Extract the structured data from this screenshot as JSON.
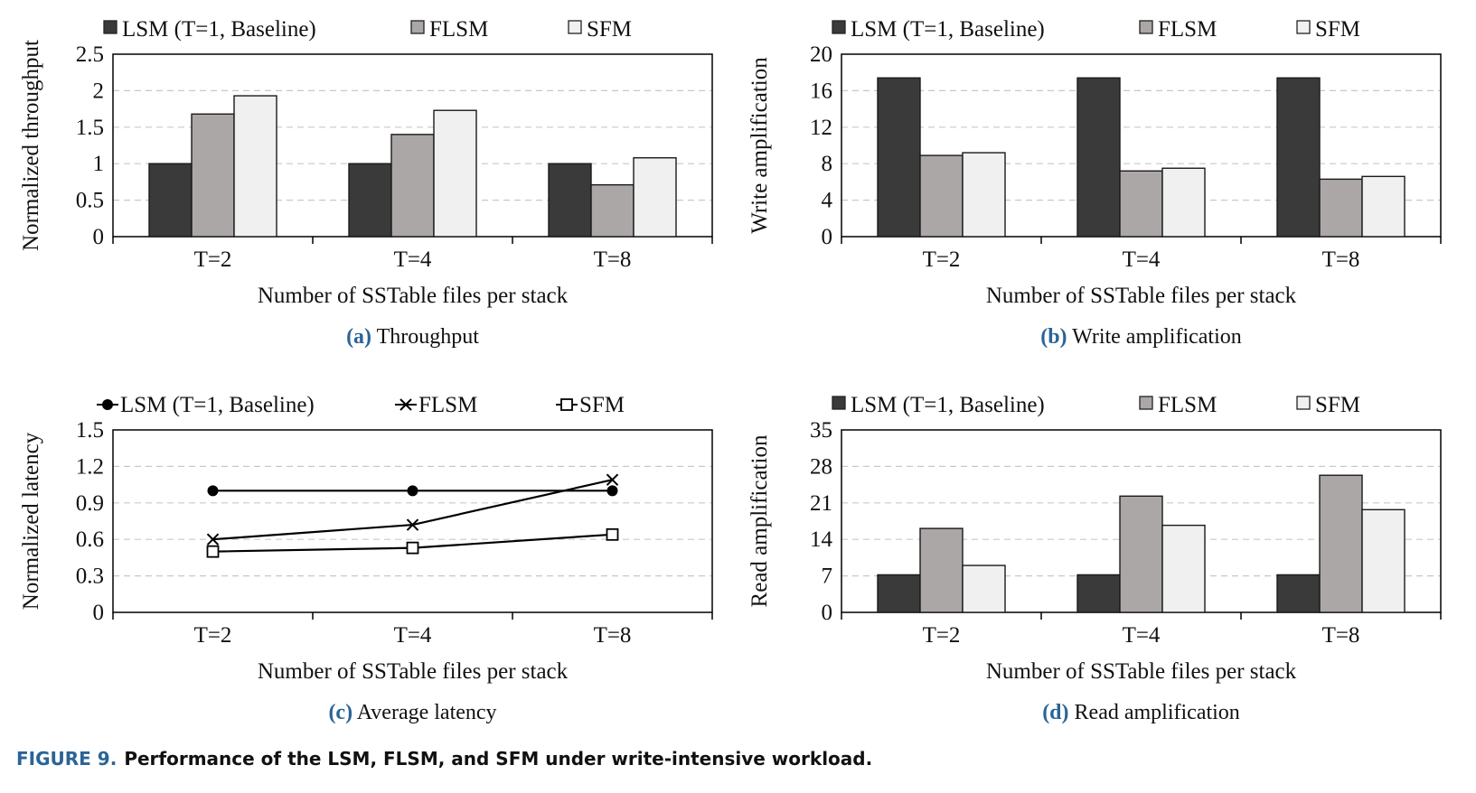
{
  "figure": {
    "number": "FIGURE 9.",
    "text": "Performance of the LSM, FLSM, and SFM under write-intensive workload.",
    "accent_color": "#2a6496"
  },
  "chart_data": [
    {
      "id": "a",
      "type": "bar",
      "caption_label": "(a)",
      "caption_text": "Throughput",
      "xlabel": "Number of SSTable files per stack",
      "ylabel": "Normalized throughput",
      "categories": [
        "T=2",
        "T=4",
        "T=8"
      ],
      "ylim": [
        0,
        2.5
      ],
      "yticks": [
        "0",
        "0.5",
        "1",
        "1.5",
        "2",
        "2.5"
      ],
      "grid": true,
      "legend_position": "top",
      "series": [
        {
          "name": "LSM (T=1, Baseline)",
          "color": "#3a3a3a",
          "values": [
            1.0,
            1.0,
            1.0
          ]
        },
        {
          "name": "FLSM",
          "color": "#aca7a7",
          "values": [
            1.68,
            1.4,
            0.71
          ]
        },
        {
          "name": "SFM",
          "color": "#f0f0f0",
          "values": [
            1.93,
            1.73,
            1.08
          ]
        }
      ]
    },
    {
      "id": "b",
      "type": "bar",
      "caption_label": "(b)",
      "caption_text": "Write amplification",
      "xlabel": "Number of SSTable files per stack",
      "ylabel": "Write amplification",
      "categories": [
        "T=2",
        "T=4",
        "T=8"
      ],
      "ylim": [
        0,
        20
      ],
      "yticks": [
        "0",
        "4",
        "8",
        "12",
        "16",
        "20"
      ],
      "grid": true,
      "legend_position": "top",
      "series": [
        {
          "name": "LSM (T=1, Baseline)",
          "color": "#3a3a3a",
          "values": [
            17.4,
            17.4,
            17.4
          ]
        },
        {
          "name": "FLSM",
          "color": "#aca7a7",
          "values": [
            8.9,
            7.2,
            6.3
          ]
        },
        {
          "name": "SFM",
          "color": "#f0f0f0",
          "values": [
            9.2,
            7.5,
            6.6
          ]
        }
      ]
    },
    {
      "id": "c",
      "type": "line",
      "caption_label": "(c)",
      "caption_text": "Average latency",
      "xlabel": "Number of SSTable files per stack",
      "ylabel": "Normalized latency",
      "categories": [
        "T=2",
        "T=4",
        "T=8"
      ],
      "ylim": [
        0,
        1.5
      ],
      "yticks": [
        "0",
        "0.3",
        "0.6",
        "0.9",
        "1.2",
        "1.5"
      ],
      "grid": true,
      "legend_position": "top",
      "series": [
        {
          "name": "LSM (T=1, Baseline)",
          "marker": "dot",
          "values": [
            1.0,
            1.0,
            1.0
          ]
        },
        {
          "name": "FLSM",
          "marker": "x",
          "values": [
            0.6,
            0.72,
            1.09
          ]
        },
        {
          "name": "SFM",
          "marker": "square",
          "values": [
            0.5,
            0.53,
            0.64
          ]
        }
      ]
    },
    {
      "id": "d",
      "type": "bar",
      "caption_label": "(d)",
      "caption_text": "Read amplification",
      "xlabel": "Number of SSTable files per stack",
      "ylabel": "Read amplification",
      "categories": [
        "T=2",
        "T=4",
        "T=8"
      ],
      "ylim": [
        0,
        35
      ],
      "yticks": [
        "0",
        "7",
        "14",
        "21",
        "28",
        "35"
      ],
      "grid": true,
      "legend_position": "top",
      "series": [
        {
          "name": "LSM (T=1, Baseline)",
          "color": "#3a3a3a",
          "values": [
            7.2,
            7.2,
            7.2
          ]
        },
        {
          "name": "FLSM",
          "color": "#aca7a7",
          "values": [
            16.1,
            22.3,
            26.3
          ]
        },
        {
          "name": "SFM",
          "color": "#f0f0f0",
          "values": [
            9.0,
            16.7,
            19.7
          ]
        }
      ]
    }
  ]
}
